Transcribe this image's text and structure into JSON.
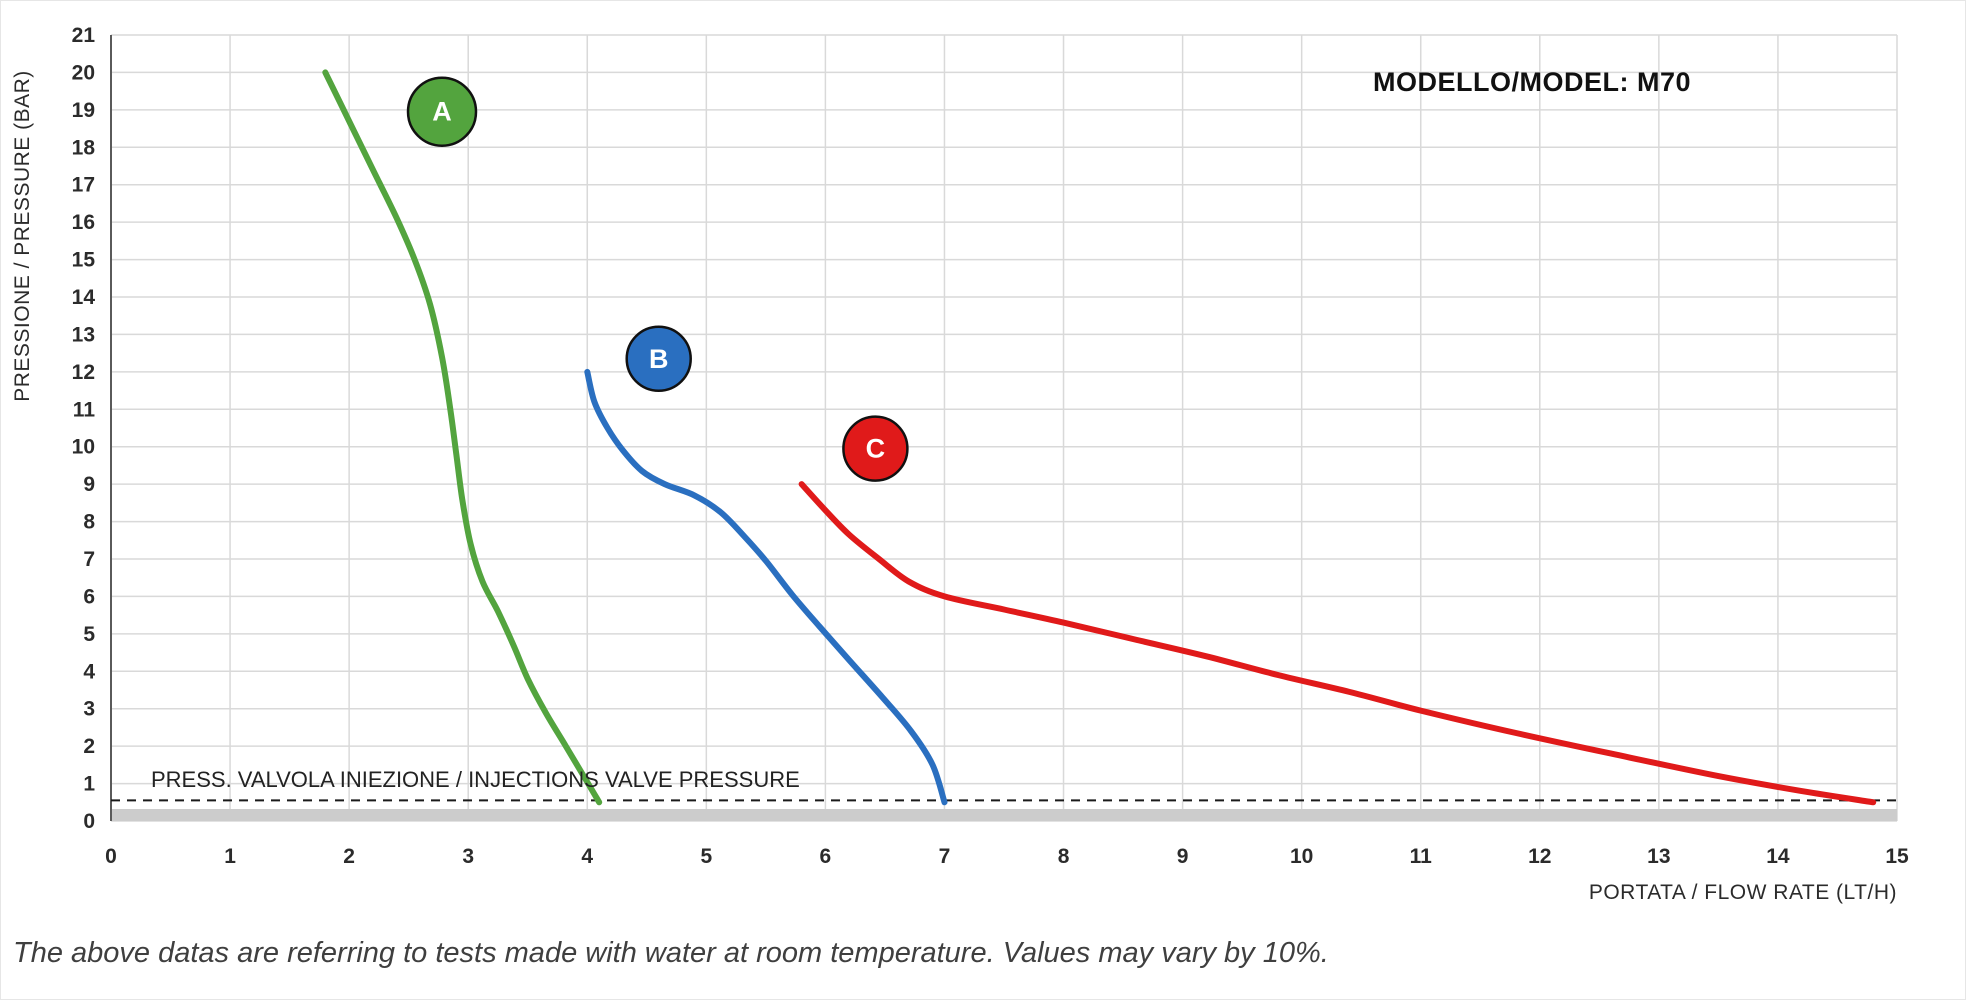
{
  "header": {
    "model_label": "MODELLO/MODEL: M70"
  },
  "caption": "The above datas are referring to tests made with water at room temperature. Values may vary by 10%.",
  "chart_data": {
    "type": "line",
    "title": "",
    "xlabel": "PORTATA / FLOW RATE (LT/H)",
    "ylabel": "PRESSIONE / PRESSURE (BAR)",
    "xlim": [
      0,
      15
    ],
    "ylim": [
      0,
      21
    ],
    "x_ticks": [
      0,
      1,
      2,
      3,
      4,
      5,
      6,
      7,
      8,
      9,
      10,
      11,
      12,
      13,
      14,
      15
    ],
    "y_ticks": [
      0,
      1,
      2,
      3,
      4,
      5,
      6,
      7,
      8,
      9,
      10,
      11,
      12,
      13,
      14,
      15,
      16,
      17,
      18,
      19,
      20,
      21
    ],
    "grid": true,
    "legend_position": "none",
    "annotation_line": {
      "y": 0.55,
      "style": "dashed",
      "color": "#1a1a1a",
      "label": "PRESS. VALVOLA INIEZIONE / INJECTIONS VALVE PRESSURE"
    },
    "series": [
      {
        "name": "A",
        "color": "#53a43e",
        "badge": {
          "x": 2.78,
          "y": 18.95,
          "r": 34
        },
        "points": [
          [
            1.8,
            20
          ],
          [
            2.0,
            18.7
          ],
          [
            2.2,
            17.4
          ],
          [
            2.4,
            16.1
          ],
          [
            2.55,
            15.0
          ],
          [
            2.68,
            13.8
          ],
          [
            2.78,
            12.4
          ],
          [
            2.85,
            11.0
          ],
          [
            2.9,
            9.8
          ],
          [
            2.95,
            8.6
          ],
          [
            3.02,
            7.4
          ],
          [
            3.12,
            6.4
          ],
          [
            3.25,
            5.6
          ],
          [
            3.38,
            4.7
          ],
          [
            3.5,
            3.8
          ],
          [
            3.65,
            2.9
          ],
          [
            3.82,
            2.0
          ],
          [
            3.97,
            1.2
          ],
          [
            4.1,
            0.5
          ]
        ]
      },
      {
        "name": "B",
        "color": "#2a6fc0",
        "badge": {
          "x": 4.6,
          "y": 12.35,
          "r": 32
        },
        "points": [
          [
            4.0,
            12.0
          ],
          [
            4.06,
            11.2
          ],
          [
            4.17,
            10.5
          ],
          [
            4.3,
            9.9
          ],
          [
            4.46,
            9.35
          ],
          [
            4.65,
            9.0
          ],
          [
            4.9,
            8.7
          ],
          [
            5.12,
            8.25
          ],
          [
            5.32,
            7.6
          ],
          [
            5.5,
            6.95
          ],
          [
            5.72,
            6.05
          ],
          [
            5.95,
            5.2
          ],
          [
            6.2,
            4.3
          ],
          [
            6.48,
            3.3
          ],
          [
            6.72,
            2.4
          ],
          [
            6.9,
            1.5
          ],
          [
            7.0,
            0.5
          ]
        ]
      },
      {
        "name": "C",
        "color": "#e01a1a",
        "badge": {
          "x": 6.42,
          "y": 9.95,
          "r": 32
        },
        "points": [
          [
            5.8,
            9.0
          ],
          [
            6.0,
            8.3
          ],
          [
            6.2,
            7.65
          ],
          [
            6.45,
            7.0
          ],
          [
            6.7,
            6.4
          ],
          [
            7.0,
            6.0
          ],
          [
            7.5,
            5.65
          ],
          [
            8.0,
            5.3
          ],
          [
            8.6,
            4.85
          ],
          [
            9.2,
            4.4
          ],
          [
            9.8,
            3.9
          ],
          [
            10.4,
            3.45
          ],
          [
            11.0,
            2.95
          ],
          [
            11.8,
            2.35
          ],
          [
            12.6,
            1.8
          ],
          [
            13.5,
            1.2
          ],
          [
            14.2,
            0.8
          ],
          [
            14.8,
            0.5
          ]
        ]
      }
    ]
  }
}
